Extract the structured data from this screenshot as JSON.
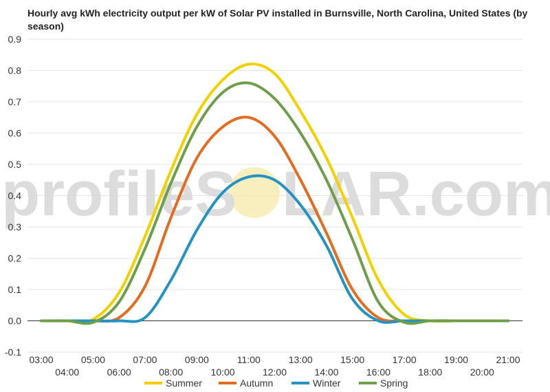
{
  "chart_data": {
    "type": "line",
    "title": "Hourly avg kWh electricity output per kW of Solar PV installed in Burnsville, North Carolina, United States (by season)",
    "xlabel": "",
    "ylabel": "",
    "x_tick_labels": [
      "03:00",
      "04:00",
      "05:00",
      "06:00",
      "07:00",
      "08:00",
      "09:00",
      "10:00",
      "11:00",
      "12:00",
      "13:00",
      "14:00",
      "15:00",
      "16:00",
      "17:00",
      "18:00",
      "19:00",
      "20:00",
      "21:00"
    ],
    "y_tick_labels": [
      "0.9",
      "0.8",
      "0.7",
      "0.6",
      "0.5",
      "0.4",
      "0.3",
      "0.2",
      "0.1",
      "0.0",
      "-0.1"
    ],
    "ylim": [
      -0.1,
      0.9
    ],
    "grid": true,
    "legend_position": "bottom",
    "x_hours": [
      3,
      4,
      5,
      6,
      7,
      8,
      9,
      10,
      11,
      12,
      13,
      14,
      15,
      16,
      17,
      18,
      19,
      20,
      21
    ],
    "series": [
      {
        "name": "Summer",
        "color": "#f5d000",
        "values": [
          0.0,
          0.0,
          0.005,
          0.09,
          0.27,
          0.48,
          0.66,
          0.77,
          0.82,
          0.79,
          0.67,
          0.52,
          0.33,
          0.13,
          0.02,
          0.0,
          0.0,
          0.0,
          0.0
        ]
      },
      {
        "name": "Autumn",
        "color": "#e46c1f",
        "values": [
          0.0,
          0.0,
          0.0,
          0.01,
          0.11,
          0.33,
          0.52,
          0.62,
          0.65,
          0.59,
          0.45,
          0.28,
          0.1,
          0.01,
          0.0,
          0.0,
          0.0,
          0.0,
          0.0
        ]
      },
      {
        "name": "Winter",
        "color": "#2393c4",
        "values": [
          0.0,
          0.0,
          0.0,
          0.0,
          0.01,
          0.13,
          0.29,
          0.41,
          0.46,
          0.45,
          0.37,
          0.24,
          0.07,
          0.0,
          0.0,
          0.0,
          0.0,
          0.0,
          0.0
        ]
      },
      {
        "name": "Spring",
        "color": "#6e9e4a",
        "values": [
          0.0,
          0.0,
          -0.005,
          0.06,
          0.23,
          0.44,
          0.62,
          0.73,
          0.76,
          0.71,
          0.6,
          0.45,
          0.26,
          0.06,
          -0.005,
          0.0,
          0.0,
          0.0,
          0.0
        ]
      }
    ]
  },
  "watermark": {
    "left": "profileS",
    "right": "LAR.com"
  }
}
